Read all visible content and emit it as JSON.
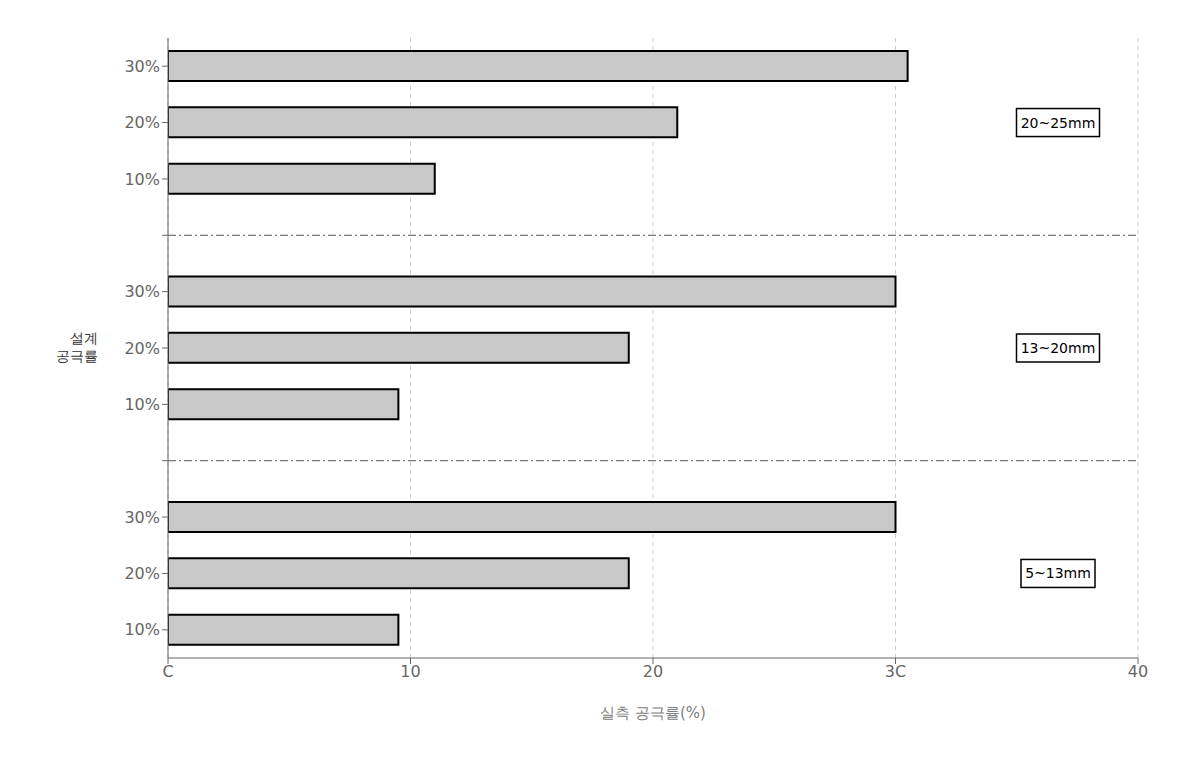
{
  "chart_data": {
    "type": "bar",
    "orientation": "horizontal",
    "categories": [
      "30%",
      "20%",
      "10%",
      "30%",
      "20%",
      "10%",
      "30%",
      "20%",
      "10%"
    ],
    "values": [
      30.5,
      21.0,
      11.0,
      30.0,
      19.0,
      9.5,
      30.0,
      19.0,
      9.5
    ],
    "color": "#c8c8c8",
    "xlim": [
      0,
      40
    ],
    "xticks": [
      {
        "value": 0,
        "label": "C"
      },
      10,
      20,
      {
        "value": 30,
        "label": "3C"
      },
      40
    ],
    "xlabel": "실측 공극률(%)",
    "ylabel": "설계\n공극률",
    "grid": true,
    "annotations": [
      "20~25mm",
      "13~20mm",
      "5~13mm"
    ]
  }
}
